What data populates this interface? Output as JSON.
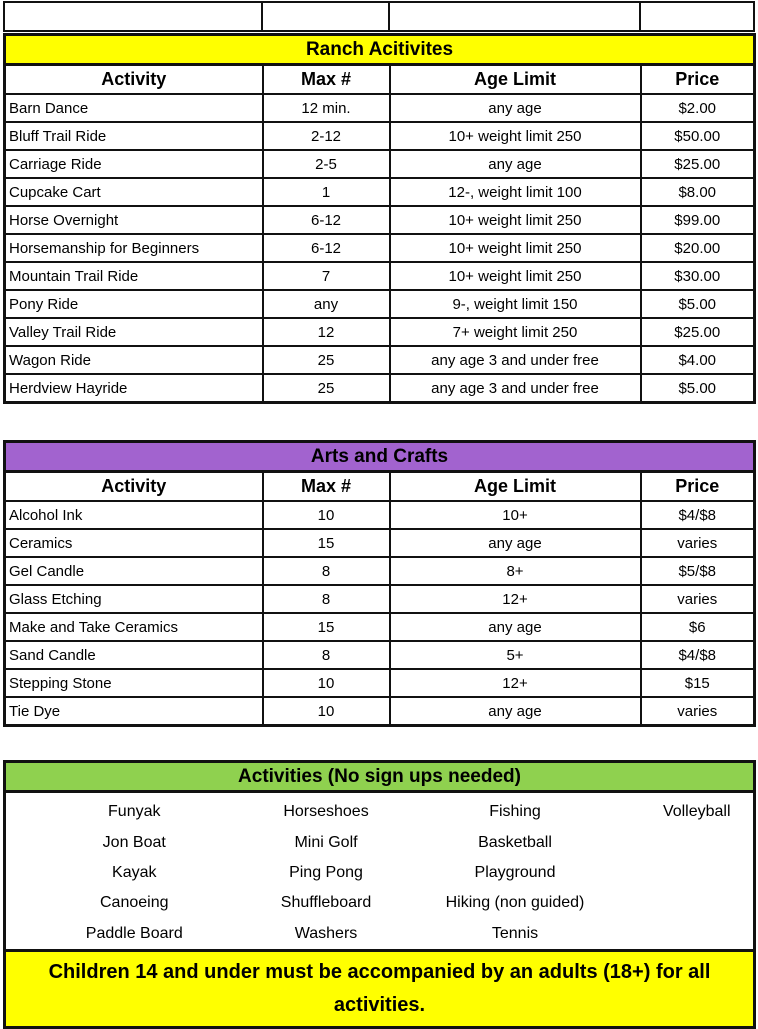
{
  "colors": {
    "ranch": "#ffff00",
    "arts": "#a263cf",
    "free": "#8fd14f",
    "footer": "#ffff00"
  },
  "ranch": {
    "title": "Ranch Acitivites",
    "headers": [
      "Activity",
      "Max #",
      "Age Limit",
      "Price"
    ],
    "rows": [
      [
        "Barn Dance",
        "12 min.",
        "any age",
        "$2.00"
      ],
      [
        "Bluff Trail Ride",
        "2-12",
        "10+ weight limit 250",
        "$50.00"
      ],
      [
        "Carriage Ride",
        "2-5",
        "any age",
        "$25.00"
      ],
      [
        "Cupcake Cart",
        "1",
        "12-, weight limit 100",
        "$8.00"
      ],
      [
        "Horse Overnight",
        "6-12",
        "10+ weight limit 250",
        "$99.00"
      ],
      [
        "Horsemanship for Beginners",
        "6-12",
        "10+ weight limit 250",
        "$20.00"
      ],
      [
        "Mountain Trail Ride",
        "7",
        "10+ weight limit 250",
        "$30.00"
      ],
      [
        "Pony Ride",
        "any",
        "9-, weight limit 150",
        "$5.00"
      ],
      [
        "Valley Trail Ride",
        "12",
        "7+ weight limit 250",
        "$25.00"
      ],
      [
        "Wagon Ride",
        "25",
        "any age 3 and under free",
        "$4.00"
      ],
      [
        "Herdview Hayride",
        "25",
        "any age 3 and under free",
        "$5.00"
      ]
    ]
  },
  "arts": {
    "title": "Arts and Crafts",
    "headers": [
      "Activity",
      "Max #",
      "Age Limit",
      "Price"
    ],
    "rows": [
      [
        "Alcohol Ink",
        "10",
        "10+",
        "$4/$8"
      ],
      [
        "Ceramics",
        "15",
        "any age",
        "varies"
      ],
      [
        "Gel Candle",
        "8",
        "8+",
        "$5/$8"
      ],
      [
        "Glass Etching",
        "8",
        "12+",
        "varies"
      ],
      [
        "Make and Take Ceramics",
        "15",
        "any age",
        "$6"
      ],
      [
        "Sand Candle",
        "8",
        "5+",
        "$4/$8"
      ],
      [
        "Stepping Stone",
        "10",
        "12+",
        "$15"
      ],
      [
        "Tie Dye",
        "10",
        "any age",
        "varies"
      ]
    ]
  },
  "free": {
    "title": "Activities (No sign ups needed)",
    "rows": [
      [
        "Funyak",
        "Horseshoes",
        "Fishing",
        "Volleyball"
      ],
      [
        "Jon Boat",
        "Mini Golf",
        "Basketball",
        ""
      ],
      [
        "Kayak",
        "Ping Pong",
        "Playground",
        ""
      ],
      [
        "Canoeing",
        "Shuffleboard",
        "Hiking (non guided)",
        ""
      ],
      [
        "Paddle Board",
        "Washers",
        "Tennis",
        ""
      ]
    ]
  },
  "footer": {
    "note": "Children 14 and under must be accompanied by an adults (18+) for all activities."
  }
}
